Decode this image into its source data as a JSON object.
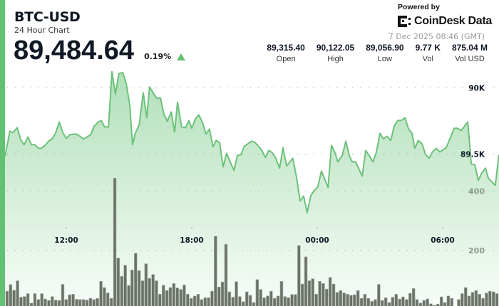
{
  "header": {
    "title": "BTC-USD",
    "subtitle": "24 Hour Chart",
    "price": "89,484.64",
    "change": "0.19%",
    "change_direction": "up",
    "up_color": "#63c173"
  },
  "branding": {
    "powered_by": "Powered by",
    "logo_text": "CoinDesk Data",
    "timestamp": "7 Dec 2025 08:46 (GMT)"
  },
  "stats": [
    {
      "value": "89,315.40",
      "label": "Open"
    },
    {
      "value": "90,122.05",
      "label": "High"
    },
    {
      "value": "89,056.90",
      "label": "Low"
    },
    {
      "value": "9.77 K",
      "label": "Vol"
    },
    {
      "value": "875.04 M",
      "label": "Vol USD"
    }
  ],
  "chart_data": {
    "type": "area",
    "price_axis": {
      "range": [
        88320,
        90190
      ],
      "ticks": [
        {
          "value": 90000,
          "label": "90K"
        },
        {
          "value": 89500,
          "label": "89.5K"
        }
      ],
      "position": "right"
    },
    "volume_axis": {
      "range": [
        0,
        830
      ],
      "ticks": [
        {
          "value": 400,
          "label": "400"
        },
        {
          "value": 200,
          "label": "200"
        }
      ],
      "position": "right"
    },
    "x_ticks": [
      "12:00",
      "18:00",
      "00:00",
      "06:00"
    ],
    "grid": "dotted horizontal",
    "line_color": "#6cc17a",
    "bar_color": "#6b7268",
    "price_series": [
      [
        "09:04",
        89479
      ],
      [
        "09:18",
        89672
      ],
      [
        "09:27",
        89661
      ],
      [
        "09:39",
        89699
      ],
      [
        "09:49",
        89608
      ],
      [
        "09:59",
        89570
      ],
      [
        "10:10",
        89629
      ],
      [
        "10:20",
        89570
      ],
      [
        "10:30",
        89570
      ],
      [
        "10:40",
        89543
      ],
      [
        "10:48",
        89543
      ],
      [
        "10:59",
        89565
      ],
      [
        "11:09",
        89597
      ],
      [
        "11:19",
        89613
      ],
      [
        "11:29",
        89656
      ],
      [
        "11:40",
        89742
      ],
      [
        "11:50",
        89661
      ],
      [
        "12:00",
        89618
      ],
      [
        "12:10",
        89645
      ],
      [
        "12:29",
        89651
      ],
      [
        "12:39",
        89634
      ],
      [
        "12:49",
        89613
      ],
      [
        "13:10",
        89645
      ],
      [
        "13:20",
        89710
      ],
      [
        "13:30",
        89737
      ],
      [
        "13:40",
        89753
      ],
      [
        "13:50",
        89704
      ],
      [
        "14:01",
        89704
      ],
      [
        "14:11",
        90122
      ],
      [
        "14:21",
        89952
      ],
      [
        "14:31",
        90108
      ],
      [
        "14:42",
        90115
      ],
      [
        "14:52",
        90032
      ],
      [
        "15:02",
        89871
      ],
      [
        "15:10",
        89570
      ],
      [
        "15:18",
        89656
      ],
      [
        "15:29",
        89720
      ],
      [
        "15:41",
        89962
      ],
      [
        "15:51",
        89774
      ],
      [
        "15:59",
        90005
      ],
      [
        "16:20",
        89919
      ],
      [
        "16:30",
        89925
      ],
      [
        "16:40",
        89801
      ],
      [
        "16:50",
        89747
      ],
      [
        "17:01",
        89817
      ],
      [
        "17:11",
        89667
      ],
      [
        "17:19",
        89892
      ],
      [
        "17:31",
        89704
      ],
      [
        "17:42",
        89699
      ],
      [
        "17:52",
        89753
      ],
      [
        "18:00",
        89694
      ],
      [
        "18:10",
        89763
      ],
      [
        "18:20",
        89796
      ],
      [
        "18:31",
        89737
      ],
      [
        "18:41",
        89651
      ],
      [
        "18:51",
        89688
      ],
      [
        "19:01",
        89554
      ],
      [
        "19:10",
        89602
      ],
      [
        "19:20",
        89586
      ],
      [
        "19:30",
        89403
      ],
      [
        "19:40",
        89505
      ],
      [
        "19:50",
        89441
      ],
      [
        "20:01",
        89376
      ],
      [
        "20:11",
        89489
      ],
      [
        "20:21",
        89495
      ],
      [
        "20:31",
        89559
      ],
      [
        "20:46",
        89586
      ],
      [
        "20:52",
        89597
      ],
      [
        "21:02",
        89586
      ],
      [
        "21:20",
        89532
      ],
      [
        "21:31",
        89473
      ],
      [
        "21:41",
        89527
      ],
      [
        "21:51",
        89511
      ],
      [
        "22:01",
        89468
      ],
      [
        "22:12",
        89393
      ],
      [
        "22:22",
        89548
      ],
      [
        "22:32",
        89409
      ],
      [
        "22:50",
        89468
      ],
      [
        "23:01",
        89317
      ],
      [
        "23:11",
        89145
      ],
      [
        "23:21",
        89183
      ],
      [
        "23:31",
        89057
      ],
      [
        "23:42",
        89188
      ],
      [
        "23:52",
        89226
      ],
      [
        "00:02",
        89253
      ],
      [
        "00:12",
        89371
      ],
      [
        "00:31",
        89247
      ],
      [
        "00:41",
        89565
      ],
      [
        "00:51",
        89511
      ],
      [
        "00:59",
        89441
      ],
      [
        "01:12",
        89489
      ],
      [
        "01:22",
        89597
      ],
      [
        "01:32",
        89489
      ],
      [
        "01:40",
        89441
      ],
      [
        "01:50",
        89441
      ],
      [
        "02:09",
        89333
      ],
      [
        "02:19",
        89527
      ],
      [
        "02:29",
        89489
      ],
      [
        "02:40",
        89441
      ],
      [
        "02:50",
        89516
      ],
      [
        "03:00",
        89656
      ],
      [
        "03:10",
        89613
      ],
      [
        "03:20",
        89634
      ],
      [
        "03:31",
        89602
      ],
      [
        "03:41",
        89710
      ],
      [
        "03:51",
        89753
      ],
      [
        "04:01",
        89753
      ],
      [
        "04:12",
        89774
      ],
      [
        "04:22",
        89688
      ],
      [
        "04:32",
        89656
      ],
      [
        "04:40",
        89543
      ],
      [
        "04:50",
        89602
      ],
      [
        "05:01",
        89575
      ],
      [
        "05:11",
        89495
      ],
      [
        "05:21",
        89468
      ],
      [
        "05:31",
        89516
      ],
      [
        "05:42",
        89543
      ],
      [
        "05:52",
        89516
      ],
      [
        "06:10",
        89548
      ],
      [
        "06:23",
        89629
      ],
      [
        "06:33",
        89694
      ],
      [
        "06:43",
        89694
      ],
      [
        "06:53",
        89677
      ],
      [
        "07:12",
        89742
      ],
      [
        "07:22",
        89425
      ],
      [
        "07:32",
        89419
      ],
      [
        "07:42",
        89301
      ],
      [
        "07:53",
        89360
      ],
      [
        "08:03",
        89393
      ],
      [
        "08:11",
        89317
      ],
      [
        "08:31",
        89263
      ],
      [
        "08:41",
        89489
      ],
      [
        "08:46",
        89485
      ]
    ],
    "volume_series": [
      64,
      86,
      67,
      99,
      44,
      46,
      56,
      24,
      56,
      36,
      56,
      38,
      33,
      46,
      34,
      33,
      87,
      36,
      52,
      54,
      37,
      36,
      36,
      34,
      40,
      36,
      40,
      97,
      76,
      58,
      40,
      443,
      175,
      114,
      151,
      83,
      135,
      191,
      133,
      99,
      156,
      107,
      120,
      99,
      54,
      84,
      66,
      76,
      90,
      75,
      70,
      85,
      54,
      40,
      48,
      54,
      36,
      42,
      42,
      64,
      248,
      78,
      95,
      221,
      62,
      44,
      96,
      46,
      29,
      62,
      50,
      26,
      103,
      70,
      42,
      48,
      64,
      40,
      48,
      97,
      46,
      42,
      53,
      53,
      217,
      88,
      179,
      99,
      106,
      54,
      97,
      90,
      71,
      110,
      88,
      60,
      66,
      58,
      54,
      50,
      52,
      66,
      40,
      54,
      40,
      30,
      36,
      87,
      33,
      42,
      26,
      44,
      54,
      38,
      45,
      36,
      57,
      73,
      36,
      24,
      33,
      38,
      22,
      17,
      21,
      45,
      26,
      48,
      40,
      5,
      36,
      56,
      76,
      48,
      60,
      66,
      54,
      40,
      58,
      64,
      62,
      56
    ]
  }
}
